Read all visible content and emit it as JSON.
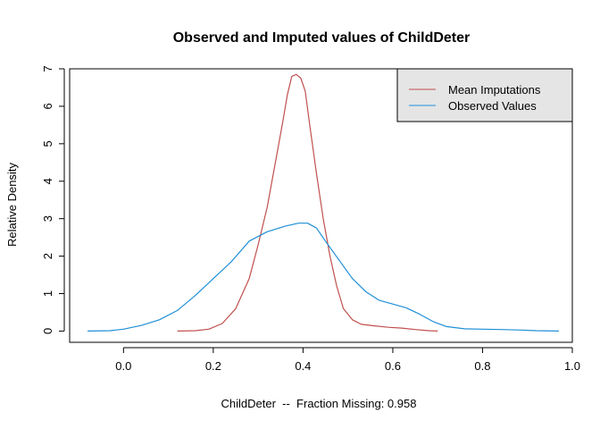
{
  "chart_data": {
    "type": "line",
    "title": "Observed and Imputed values of ChildDeter",
    "xlabel": "ChildDeter  --  Fraction Missing: 0.958",
    "ylabel": "Relative Density",
    "xlim": [
      -0.12,
      1.0
    ],
    "ylim": [
      -0.3,
      7.0
    ],
    "xticks": [
      0.0,
      0.2,
      0.4,
      0.6,
      0.8,
      1.0
    ],
    "xtick_labels": [
      "0.0",
      "0.2",
      "0.4",
      "0.6",
      "0.8",
      "1.0"
    ],
    "yticks": [
      0,
      1,
      2,
      3,
      4,
      5,
      6,
      7
    ],
    "ytick_labels": [
      "0",
      "1",
      "2",
      "3",
      "4",
      "5",
      "6",
      "7"
    ],
    "grid": false,
    "legend_position": "top-right",
    "legend_background": "#e5e5e5",
    "series": [
      {
        "name": "Mean Imputations",
        "color": "#c0504d",
        "points": [
          [
            0.12,
            0.0
          ],
          [
            0.16,
            0.01
          ],
          [
            0.19,
            0.05
          ],
          [
            0.22,
            0.2
          ],
          [
            0.25,
            0.6
          ],
          [
            0.28,
            1.4
          ],
          [
            0.3,
            2.3
          ],
          [
            0.32,
            3.3
          ],
          [
            0.34,
            4.6
          ],
          [
            0.355,
            5.6
          ],
          [
            0.365,
            6.3
          ],
          [
            0.375,
            6.8
          ],
          [
            0.385,
            6.85
          ],
          [
            0.395,
            6.75
          ],
          [
            0.405,
            6.4
          ],
          [
            0.415,
            5.5
          ],
          [
            0.43,
            4.2
          ],
          [
            0.445,
            3.0
          ],
          [
            0.46,
            2.0
          ],
          [
            0.475,
            1.2
          ],
          [
            0.49,
            0.6
          ],
          [
            0.51,
            0.3
          ],
          [
            0.53,
            0.18
          ],
          [
            0.56,
            0.14
          ],
          [
            0.59,
            0.1
          ],
          [
            0.62,
            0.08
          ],
          [
            0.65,
            0.04
          ],
          [
            0.68,
            0.01
          ],
          [
            0.7,
            0.0
          ]
        ]
      },
      {
        "name": "Observed Values",
        "color": "#1f8fd6",
        "points": [
          [
            -0.08,
            0.0
          ],
          [
            -0.03,
            0.01
          ],
          [
            0.0,
            0.05
          ],
          [
            0.04,
            0.15
          ],
          [
            0.08,
            0.3
          ],
          [
            0.12,
            0.55
          ],
          [
            0.16,
            0.95
          ],
          [
            0.2,
            1.4
          ],
          [
            0.24,
            1.85
          ],
          [
            0.28,
            2.4
          ],
          [
            0.32,
            2.65
          ],
          [
            0.36,
            2.8
          ],
          [
            0.39,
            2.88
          ],
          [
            0.41,
            2.88
          ],
          [
            0.43,
            2.75
          ],
          [
            0.45,
            2.4
          ],
          [
            0.48,
            1.9
          ],
          [
            0.51,
            1.4
          ],
          [
            0.54,
            1.05
          ],
          [
            0.57,
            0.82
          ],
          [
            0.6,
            0.72
          ],
          [
            0.63,
            0.62
          ],
          [
            0.66,
            0.45
          ],
          [
            0.69,
            0.25
          ],
          [
            0.72,
            0.12
          ],
          [
            0.76,
            0.06
          ],
          [
            0.8,
            0.05
          ],
          [
            0.84,
            0.04
          ],
          [
            0.88,
            0.03
          ],
          [
            0.92,
            0.01
          ],
          [
            0.97,
            0.0
          ]
        ]
      }
    ]
  }
}
